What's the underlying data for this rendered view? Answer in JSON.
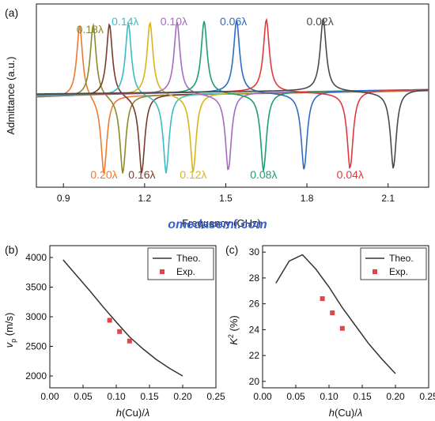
{
  "watermark": "omedasemi.com",
  "chart_data": [
    {
      "panel": "(a)",
      "type": "line",
      "xlabel": "Frequency (GHz)",
      "ylabel": "Admittance (a.u.)",
      "xlim": [
        0.8,
        2.25
      ],
      "xticks": [
        "0.9",
        "1.2",
        "1.5",
        "1.8",
        "2.1"
      ],
      "grid": false,
      "series": [
        {
          "name": "0.02λ",
          "resonance_ghz": 1.86,
          "antiresonance_ghz": 2.12,
          "color": "#4a4a4a",
          "label_pos": "top"
        },
        {
          "name": "0.04λ",
          "resonance_ghz": 1.65,
          "antiresonance_ghz": 1.96,
          "color": "#e0393e",
          "label_pos": "bottom"
        },
        {
          "name": "0.06λ",
          "resonance_ghz": 1.54,
          "antiresonance_ghz": 1.79,
          "color": "#2e6cc4",
          "label_pos": "top"
        },
        {
          "name": "0.08λ",
          "resonance_ghz": 1.42,
          "antiresonance_ghz": 1.64,
          "color": "#1f9e6f",
          "label_pos": "bottom"
        },
        {
          "name": "0.10λ",
          "resonance_ghz": 1.32,
          "antiresonance_ghz": 1.51,
          "color": "#a46cc3",
          "label_pos": "top"
        },
        {
          "name": "0.12λ",
          "resonance_ghz": 1.22,
          "antiresonance_ghz": 1.38,
          "color": "#d9b51d",
          "label_pos": "bottom"
        },
        {
          "name": "0.14λ",
          "resonance_ghz": 1.14,
          "antiresonance_ghz": 1.28,
          "color": "#3bbcc6",
          "label_pos": "top"
        },
        {
          "name": "0.16λ",
          "resonance_ghz": 1.07,
          "antiresonance_ghz": 1.19,
          "color": "#7a3b2e",
          "label_pos": "bottom"
        },
        {
          "name": "0.18λ",
          "resonance_ghz": 1.01,
          "antiresonance_ghz": 1.12,
          "color": "#8c8a2a",
          "label_pos": "top"
        },
        {
          "name": "0.20λ",
          "resonance_ghz": 0.96,
          "antiresonance_ghz": 1.05,
          "color": "#ee7b30",
          "label_pos": "bottom"
        }
      ]
    },
    {
      "panel": "(b)",
      "type": "line",
      "xlabel": "h(Cu)/λ",
      "ylabel": "vp (m/s)",
      "xlim": [
        0.0,
        0.25
      ],
      "ylim": [
        1800,
        4200
      ],
      "xticks": [
        "0.00",
        "0.05",
        "0.10",
        "0.15",
        "0.20",
        "0.25"
      ],
      "yticks": [
        "2000",
        "2500",
        "3000",
        "3500",
        "4000"
      ],
      "legend": "top-right",
      "series": [
        {
          "name": "Theo.",
          "style": "line",
          "color": "#333333",
          "x": [
            0.02,
            0.04,
            0.06,
            0.08,
            0.1,
            0.12,
            0.14,
            0.16,
            0.18,
            0.2
          ],
          "y": [
            3960,
            3700,
            3440,
            3170,
            2910,
            2660,
            2460,
            2280,
            2130,
            2000
          ]
        },
        {
          "name": "Exp.",
          "style": "marker",
          "color": "#e0454a",
          "x": [
            0.09,
            0.105,
            0.12
          ],
          "y": [
            2940,
            2750,
            2590
          ]
        }
      ]
    },
    {
      "panel": "(c)",
      "type": "line",
      "xlabel": "h(Cu)/λ",
      "ylabel": "K2 (%)",
      "xlim": [
        0.0,
        0.25
      ],
      "ylim": [
        19.5,
        30.5
      ],
      "xticks": [
        "0.00",
        "0.05",
        "0.10",
        "0.15",
        "0.20",
        "0.25"
      ],
      "yticks": [
        "20",
        "22",
        "24",
        "26",
        "28",
        "30"
      ],
      "legend": "top-right",
      "series": [
        {
          "name": "Theo.",
          "style": "line",
          "color": "#333333",
          "x": [
            0.02,
            0.04,
            0.06,
            0.08,
            0.1,
            0.12,
            0.14,
            0.16,
            0.18,
            0.2
          ],
          "y": [
            27.6,
            29.3,
            29.8,
            28.7,
            27.3,
            25.7,
            24.3,
            22.9,
            21.7,
            20.6
          ]
        },
        {
          "name": "Exp.",
          "style": "marker",
          "color": "#e0454a",
          "x": [
            0.09,
            0.105,
            0.12
          ],
          "y": [
            26.4,
            25.3,
            24.1
          ]
        }
      ]
    }
  ]
}
